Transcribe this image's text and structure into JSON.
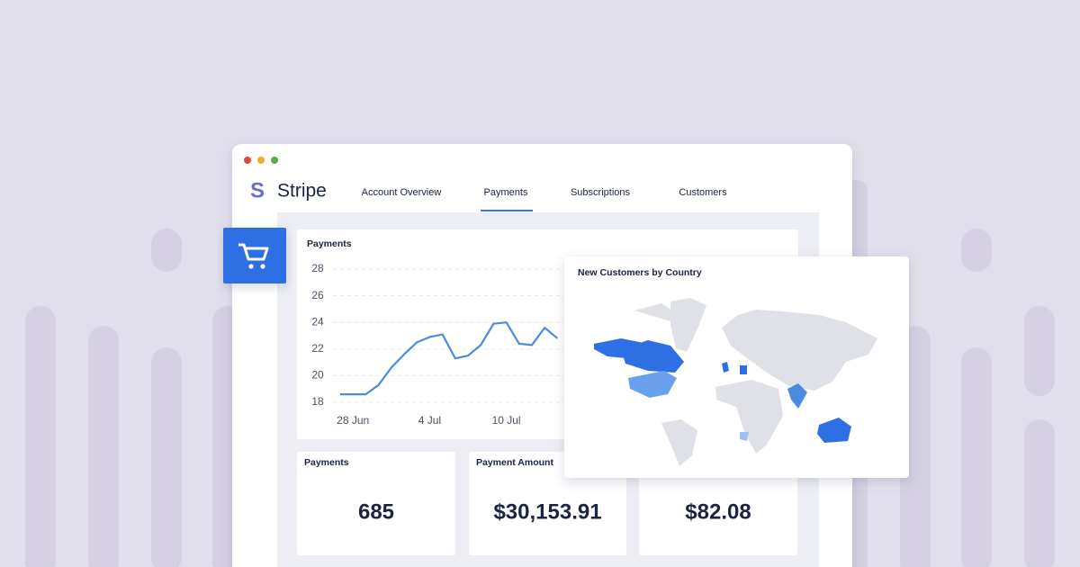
{
  "brand": {
    "icon": "S",
    "name": "Stripe"
  },
  "nav": [
    "Account Overview",
    "Payments",
    "Subscriptions",
    "Customers"
  ],
  "active_nav": 1,
  "payments_chart": {
    "type": "line",
    "title": "Payments",
    "categories": [
      null,
      "28 Jun",
      null,
      null,
      null,
      null,
      null,
      "4 Jul",
      null,
      null,
      null,
      null,
      null,
      "10 Jul",
      null,
      null,
      null,
      null
    ],
    "values": [
      18.6,
      18.6,
      18.6,
      19.3,
      20.6,
      21.6,
      22.5,
      22.9,
      23.1,
      21.3,
      21.5,
      22.3,
      23.9,
      24.0,
      22.4,
      22.3,
      23.6,
      22.8
    ],
    "color": "#4a8be0",
    "ylim": [
      18,
      28
    ],
    "yticks": [
      18,
      20,
      22,
      24,
      26,
      28
    ],
    "grid": true
  },
  "kpis": [
    {
      "title": "Payments",
      "value": "685"
    },
    {
      "title": "Payment Amount",
      "value": "$30,153.91"
    },
    {
      "value": "$82.08"
    }
  ],
  "map": {
    "title": "New Customers by Country"
  }
}
